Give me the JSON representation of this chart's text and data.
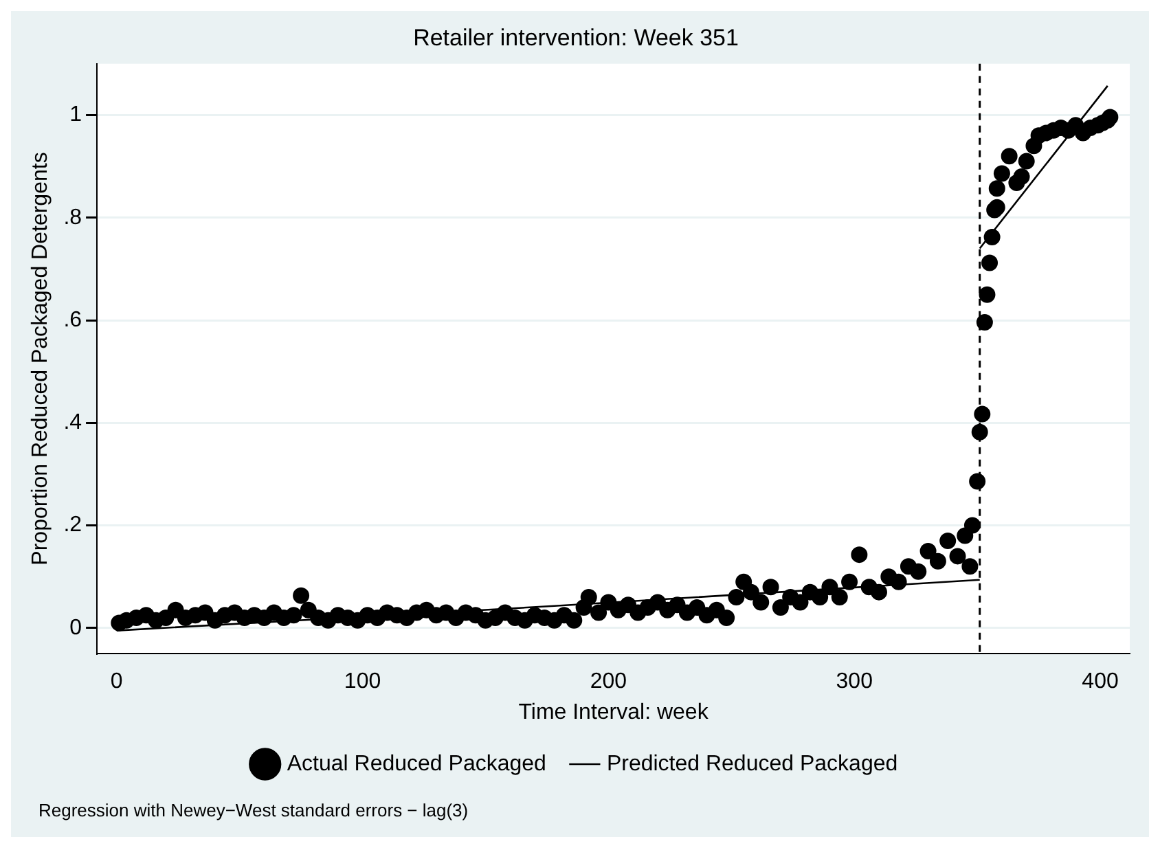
{
  "chart_data": {
    "type": "scatter",
    "title": "Retailer intervention: Week 351",
    "xlabel": "Time Interval: week",
    "ylabel": "Proportion Reduced Packaged Detergents",
    "xlim": [
      -8,
      412
    ],
    "xticks": [
      0,
      100,
      200,
      300,
      400
    ],
    "ylim": [
      -0.05,
      1.1
    ],
    "yticks": [
      0,
      {
        "value": 0.2,
        "label": ".2"
      },
      {
        "value": 0.4,
        "label": ".4"
      },
      {
        "value": 0.6,
        "label": ".6"
      },
      {
        "value": 0.8,
        "label": ".8"
      },
      1
    ],
    "grid": "y",
    "legend": "bottom",
    "marker": "circle",
    "ref_lines": [
      {
        "axis": "x",
        "value": 351,
        "color": "#000000",
        "line_style": "dashed"
      }
    ],
    "annotations": [
      "Regression with Newey−West standard errors − lag(3)"
    ],
    "series": [
      {
        "name": "Actual Reduced Packaged",
        "type": "scatter",
        "color": "#000000",
        "x": [
          1,
          4,
          8,
          12,
          16,
          20,
          24,
          28,
          32,
          36,
          40,
          44,
          48,
          52,
          56,
          60,
          64,
          68,
          72,
          75,
          78,
          82,
          86,
          90,
          94,
          98,
          102,
          106,
          110,
          114,
          118,
          122,
          126,
          130,
          134,
          138,
          142,
          146,
          150,
          154,
          158,
          162,
          166,
          170,
          174,
          178,
          182,
          186,
          190,
          192,
          196,
          200,
          204,
          208,
          212,
          216,
          220,
          224,
          228,
          232,
          236,
          240,
          244,
          248,
          252,
          255,
          258,
          262,
          266,
          270,
          274,
          278,
          282,
          286,
          290,
          294,
          298,
          302,
          306,
          310,
          314,
          318,
          322,
          326,
          330,
          334,
          338,
          342,
          345,
          347,
          348,
          350,
          351,
          352,
          353,
          354,
          355,
          356,
          357,
          358,
          358,
          360,
          363,
          366,
          368,
          370,
          373,
          375,
          378,
          381,
          384,
          387,
          390,
          393,
          396,
          399,
          401,
          403,
          404
        ],
        "values": [
          0.01,
          0.015,
          0.02,
          0.025,
          0.015,
          0.02,
          0.035,
          0.02,
          0.025,
          0.03,
          0.015,
          0.025,
          0.03,
          0.02,
          0.025,
          0.02,
          0.03,
          0.02,
          0.025,
          0.063,
          0.035,
          0.02,
          0.015,
          0.025,
          0.02,
          0.015,
          0.025,
          0.02,
          0.03,
          0.025,
          0.02,
          0.03,
          0.035,
          0.025,
          0.03,
          0.02,
          0.03,
          0.025,
          0.015,
          0.02,
          0.03,
          0.02,
          0.015,
          0.025,
          0.02,
          0.015,
          0.025,
          0.015,
          0.04,
          0.06,
          0.03,
          0.05,
          0.035,
          0.045,
          0.03,
          0.04,
          0.05,
          0.035,
          0.045,
          0.03,
          0.04,
          0.025,
          0.035,
          0.02,
          0.06,
          0.09,
          0.07,
          0.05,
          0.08,
          0.04,
          0.06,
          0.05,
          0.07,
          0.06,
          0.08,
          0.06,
          0.09,
          0.143,
          0.08,
          0.07,
          0.1,
          0.09,
          0.12,
          0.11,
          0.15,
          0.13,
          0.17,
          0.14,
          0.18,
          0.12,
          0.2,
          0.286,
          0.382,
          0.417,
          0.596,
          0.65,
          0.712,
          0.762,
          0.815,
          0.82,
          0.857,
          0.886,
          0.92,
          0.868,
          0.88,
          0.91,
          0.94,
          0.96,
          0.965,
          0.97,
          0.975,
          0.97,
          0.98,
          0.965,
          0.975,
          0.98,
          0.985,
          0.99,
          0.996
        ]
      },
      {
        "name": "Predicted Reduced Packaged",
        "type": "line",
        "color": "#000000",
        "line_style": "solid",
        "marker": "none",
        "x": [
          0,
          178,
          351,
          null,
          351,
          403
        ],
        "values": [
          -0.005,
          0.043,
          0.094,
          null,
          0.74,
          1.057
        ]
      }
    ]
  }
}
